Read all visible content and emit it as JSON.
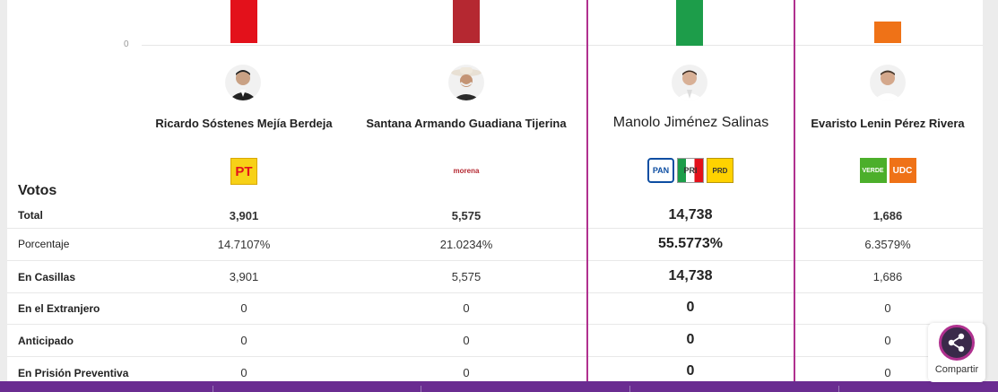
{
  "axis": {
    "zero_label": "0"
  },
  "section_title": "Votos",
  "row_labels": [
    "Total",
    "Porcentaje",
    "En Casillas",
    "En el Extranjero",
    "Anticipado",
    "En Prisión Preventiva"
  ],
  "candidates": [
    {
      "name": "Ricardo Sóstenes Mejía Berdeja",
      "bar_color": "#e3111b",
      "parties": [
        "PT"
      ],
      "values": [
        "3,901",
        "14.7107%",
        "3,901",
        "0",
        "0",
        "0"
      ]
    },
    {
      "name": "Santana Armando Guadiana Tijerina",
      "bar_color": "#b52831",
      "parties": [
        "morena"
      ],
      "values": [
        "5,575",
        "21.0234%",
        "5,575",
        "0",
        "0",
        "0"
      ]
    },
    {
      "name": "Manolo Jiménez Salinas",
      "bar_color": "#1d9d4a",
      "parties": [
        "PAN",
        "PRI",
        "PRD"
      ],
      "values": [
        "14,738",
        "55.5773%",
        "14,738",
        "0",
        "0",
        "0"
      ],
      "highlighted": true
    },
    {
      "name": "Evaristo Lenin Pérez Rivera",
      "bar_color": "#ef7217",
      "parties": [
        "VERDE",
        "UDC"
      ],
      "values": [
        "1,686",
        "6.3579%",
        "1,686",
        "0",
        "0",
        "0"
      ]
    }
  ],
  "share": {
    "label": "Compartir",
    "icon": "share-icon"
  },
  "colors": {
    "accent": "#b0318f",
    "footer": "#6a2c91"
  }
}
